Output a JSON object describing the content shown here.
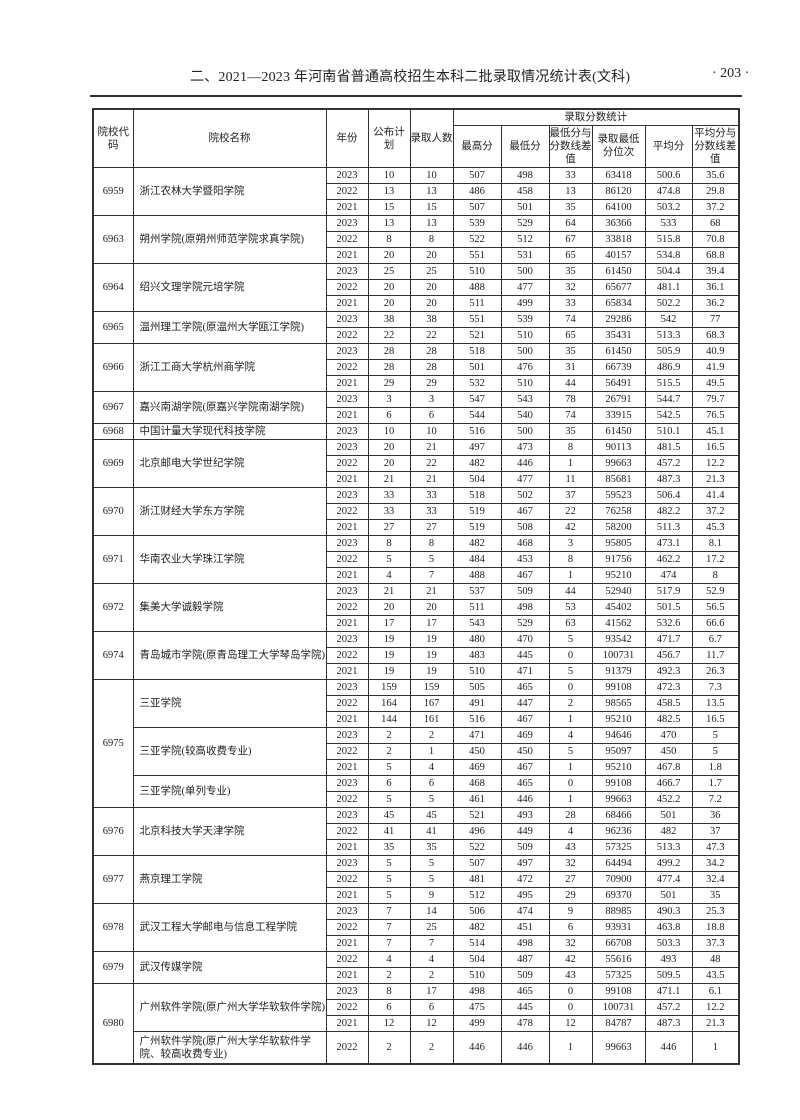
{
  "page": {
    "title": "二、2021—2023 年河南省普通高校招生本科二批录取情况统计表(文科)",
    "page_number": "· 203 ·"
  },
  "headers": {
    "code": "院校代码",
    "name": "院校名称",
    "year": "年份",
    "plan": "公布计划",
    "admitted": "录取人数",
    "group": "录取分数统计",
    "max": "最高分",
    "min": "最低分",
    "min_diff": "最低分与分数线差值",
    "min_rank": "录取最低分位次",
    "avg": "平均分",
    "avg_diff": "平均分与分数线差值"
  },
  "schools": [
    {
      "code": "6959",
      "programs": [
        {
          "name": "浙江农林大学暨阳学院",
          "rows": [
            [
              "2023",
              "10",
              "10",
              "507",
              "498",
              "33",
              "63418",
              "500.6",
              "35.6"
            ],
            [
              "2022",
              "13",
              "13",
              "486",
              "458",
              "13",
              "86120",
              "474.8",
              "29.8"
            ],
            [
              "2021",
              "15",
              "15",
              "507",
              "501",
              "35",
              "64100",
              "503.2",
              "37.2"
            ]
          ]
        }
      ]
    },
    {
      "code": "6963",
      "programs": [
        {
          "name": "朔州学院(原朔州师范学院求真学院)",
          "rows": [
            [
              "2023",
              "13",
              "13",
              "539",
              "529",
              "64",
              "36366",
              "533",
              "68"
            ],
            [
              "2022",
              "8",
              "8",
              "522",
              "512",
              "67",
              "33818",
              "515.8",
              "70.8"
            ],
            [
              "2021",
              "20",
              "20",
              "551",
              "531",
              "65",
              "40157",
              "534.8",
              "68.8"
            ]
          ]
        }
      ]
    },
    {
      "code": "6964",
      "programs": [
        {
          "name": "绍兴文理学院元培学院",
          "rows": [
            [
              "2023",
              "25",
              "25",
              "510",
              "500",
              "35",
              "61450",
              "504.4",
              "39.4"
            ],
            [
              "2022",
              "20",
              "20",
              "488",
              "477",
              "32",
              "65677",
              "481.1",
              "36.1"
            ],
            [
              "2021",
              "20",
              "20",
              "511",
              "499",
              "33",
              "65834",
              "502.2",
              "36.2"
            ]
          ]
        }
      ]
    },
    {
      "code": "6965",
      "programs": [
        {
          "name": "温州理工学院(原温州大学瓯江学院)",
          "rows": [
            [
              "2023",
              "38",
              "38",
              "551",
              "539",
              "74",
              "29286",
              "542",
              "77"
            ],
            [
              "2022",
              "22",
              "22",
              "521",
              "510",
              "65",
              "35431",
              "513.3",
              "68.3"
            ]
          ]
        }
      ]
    },
    {
      "code": "6966",
      "programs": [
        {
          "name": "浙江工商大学杭州商学院",
          "rows": [
            [
              "2023",
              "28",
              "28",
              "518",
              "500",
              "35",
              "61450",
              "505.9",
              "40.9"
            ],
            [
              "2022",
              "28",
              "28",
              "501",
              "476",
              "31",
              "66739",
              "486.9",
              "41.9"
            ],
            [
              "2021",
              "29",
              "29",
              "532",
              "510",
              "44",
              "56491",
              "515.5",
              "49.5"
            ]
          ]
        }
      ]
    },
    {
      "code": "6967",
      "programs": [
        {
          "name": "嘉兴南湖学院(原嘉兴学院南湖学院)",
          "rows": [
            [
              "2023",
              "3",
              "3",
              "547",
              "543",
              "78",
              "26791",
              "544.7",
              "79.7"
            ],
            [
              "2021",
              "6",
              "6",
              "544",
              "540",
              "74",
              "33915",
              "542.5",
              "76.5"
            ]
          ]
        }
      ]
    },
    {
      "code": "6968",
      "programs": [
        {
          "name": "中国计量大学现代科技学院",
          "rows": [
            [
              "2023",
              "10",
              "10",
              "516",
              "500",
              "35",
              "61450",
              "510.1",
              "45.1"
            ]
          ]
        }
      ]
    },
    {
      "code": "6969",
      "programs": [
        {
          "name": "北京邮电大学世纪学院",
          "rows": [
            [
              "2023",
              "20",
              "21",
              "497",
              "473",
              "8",
              "90113",
              "481.5",
              "16.5"
            ],
            [
              "2022",
              "20",
              "22",
              "482",
              "446",
              "1",
              "99663",
              "457.2",
              "12.2"
            ],
            [
              "2021",
              "21",
              "21",
              "504",
              "477",
              "11",
              "85681",
              "487.3",
              "21.3"
            ]
          ]
        }
      ]
    },
    {
      "code": "6970",
      "programs": [
        {
          "name": "浙江财经大学东方学院",
          "rows": [
            [
              "2023",
              "33",
              "33",
              "518",
              "502",
              "37",
              "59523",
              "506.4",
              "41.4"
            ],
            [
              "2022",
              "33",
              "33",
              "519",
              "467",
              "22",
              "76258",
              "482.2",
              "37.2"
            ],
            [
              "2021",
              "27",
              "27",
              "519",
              "508",
              "42",
              "58200",
              "511.3",
              "45.3"
            ]
          ]
        }
      ]
    },
    {
      "code": "6971",
      "programs": [
        {
          "name": "华南农业大学珠江学院",
          "rows": [
            [
              "2023",
              "8",
              "8",
              "482",
              "468",
              "3",
              "95805",
              "473.1",
              "8.1"
            ],
            [
              "2022",
              "5",
              "5",
              "484",
              "453",
              "8",
              "91756",
              "462.2",
              "17.2"
            ],
            [
              "2021",
              "4",
              "7",
              "488",
              "467",
              "1",
              "95210",
              "474",
              "8"
            ]
          ]
        }
      ]
    },
    {
      "code": "6972",
      "programs": [
        {
          "name": "集美大学诚毅学院",
          "rows": [
            [
              "2023",
              "21",
              "21",
              "537",
              "509",
              "44",
              "52940",
              "517.9",
              "52.9"
            ],
            [
              "2022",
              "20",
              "20",
              "511",
              "498",
              "53",
              "45402",
              "501.5",
              "56.5"
            ],
            [
              "2021",
              "17",
              "17",
              "543",
              "529",
              "63",
              "41562",
              "532.6",
              "66.6"
            ]
          ]
        }
      ]
    },
    {
      "code": "6974",
      "programs": [
        {
          "name": "青岛城市学院(原青岛理工大学琴岛学院)",
          "rows": [
            [
              "2023",
              "19",
              "19",
              "480",
              "470",
              "5",
              "93542",
              "471.7",
              "6.7"
            ],
            [
              "2022",
              "19",
              "19",
              "483",
              "445",
              "0",
              "100731",
              "456.7",
              "11.7"
            ],
            [
              "2021",
              "19",
              "19",
              "510",
              "471",
              "5",
              "91379",
              "492.3",
              "26.3"
            ]
          ]
        }
      ]
    },
    {
      "code": "6975",
      "programs": [
        {
          "name": "三亚学院",
          "rows": [
            [
              "2023",
              "159",
              "159",
              "505",
              "465",
              "0",
              "99108",
              "472.3",
              "7.3"
            ],
            [
              "2022",
              "164",
              "167",
              "491",
              "447",
              "2",
              "98565",
              "458.5",
              "13.5"
            ],
            [
              "2021",
              "144",
              "161",
              "516",
              "467",
              "1",
              "95210",
              "482.5",
              "16.5"
            ]
          ]
        },
        {
          "name": "三亚学院(较高收费专业)",
          "rows": [
            [
              "2023",
              "2",
              "2",
              "471",
              "469",
              "4",
              "94646",
              "470",
              "5"
            ],
            [
              "2022",
              "2",
              "1",
              "450",
              "450",
              "5",
              "95097",
              "450",
              "5"
            ],
            [
              "2021",
              "5",
              "4",
              "469",
              "467",
              "1",
              "95210",
              "467.8",
              "1.8"
            ]
          ]
        },
        {
          "name": "三亚学院(单列专业)",
          "rows": [
            [
              "2023",
              "6",
              "6",
              "468",
              "465",
              "0",
              "99108",
              "466.7",
              "1.7"
            ],
            [
              "2022",
              "5",
              "5",
              "461",
              "446",
              "1",
              "99663",
              "452.2",
              "7.2"
            ]
          ]
        }
      ]
    },
    {
      "code": "6976",
      "programs": [
        {
          "name": "北京科技大学天津学院",
          "rows": [
            [
              "2023",
              "45",
              "45",
              "521",
              "493",
              "28",
              "68466",
              "501",
              "36"
            ],
            [
              "2022",
              "41",
              "41",
              "496",
              "449",
              "4",
              "96236",
              "482",
              "37"
            ],
            [
              "2021",
              "35",
              "35",
              "522",
              "509",
              "43",
              "57325",
              "513.3",
              "47.3"
            ]
          ]
        }
      ]
    },
    {
      "code": "6977",
      "programs": [
        {
          "name": "燕京理工学院",
          "rows": [
            [
              "2023",
              "5",
              "5",
              "507",
              "497",
              "32",
              "64494",
              "499.2",
              "34.2"
            ],
            [
              "2022",
              "5",
              "5",
              "481",
              "472",
              "27",
              "70900",
              "477.4",
              "32.4"
            ],
            [
              "2021",
              "5",
              "9",
              "512",
              "495",
              "29",
              "69370",
              "501",
              "35"
            ]
          ]
        }
      ]
    },
    {
      "code": "6978",
      "programs": [
        {
          "name": "武汉工程大学邮电与信息工程学院",
          "rows": [
            [
              "2023",
              "7",
              "14",
              "506",
              "474",
              "9",
              "88985",
              "490.3",
              "25.3"
            ],
            [
              "2022",
              "7",
              "25",
              "482",
              "451",
              "6",
              "93931",
              "463.8",
              "18.8"
            ],
            [
              "2021",
              "7",
              "7",
              "514",
              "498",
              "32",
              "66708",
              "503.3",
              "37.3"
            ]
          ]
        }
      ]
    },
    {
      "code": "6979",
      "programs": [
        {
          "name": "武汉传媒学院",
          "rows": [
            [
              "2022",
              "4",
              "4",
              "504",
              "487",
              "42",
              "55616",
              "493",
              "48"
            ],
            [
              "2021",
              "2",
              "2",
              "510",
              "509",
              "43",
              "57325",
              "509.5",
              "43.5"
            ]
          ]
        }
      ]
    },
    {
      "code": "6980",
      "programs": [
        {
          "name": "广州软件学院(原广州大学华软软件学院)",
          "rows": [
            [
              "2023",
              "8",
              "17",
              "498",
              "465",
              "0",
              "99108",
              "471.1",
              "6.1"
            ],
            [
              "2022",
              "6",
              "6",
              "475",
              "445",
              "0",
              "100731",
              "457.2",
              "12.2"
            ],
            [
              "2021",
              "12",
              "12",
              "499",
              "478",
              "12",
              "84787",
              "487.3",
              "21.3"
            ]
          ]
        },
        {
          "name": "广州软件学院(原广州大学华软软件学院、较高收费专业)",
          "rows": [
            [
              "2022",
              "2",
              "2",
              "446",
              "446",
              "1",
              "99663",
              "446",
              "1"
            ]
          ]
        }
      ]
    }
  ]
}
